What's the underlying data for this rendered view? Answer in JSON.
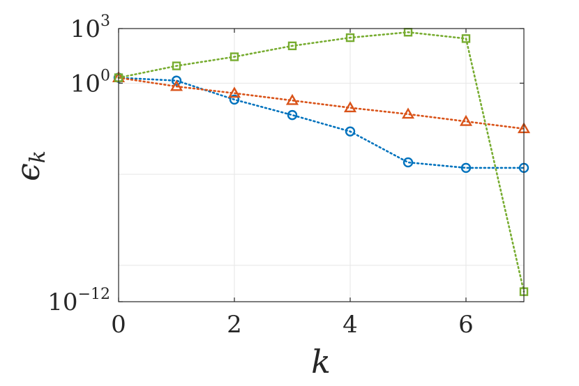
{
  "chart_data": {
    "type": "line",
    "title": "",
    "xlabel": "k",
    "ylabel": "ϵ",
    "ylabel_sub": "k",
    "y_scale": "log10",
    "xlim": [
      0,
      7
    ],
    "ylim_exp": [
      -12,
      3
    ],
    "grid": true,
    "x_ticks": [
      0,
      2,
      4,
      6
    ],
    "x_tick_labels": [
      "0",
      "2",
      "4",
      "6"
    ],
    "y_ticks_exp": [
      -12,
      0,
      3
    ],
    "y_tick_labels": [
      {
        "base": "10",
        "exp": "−12"
      },
      {
        "base": "10",
        "exp": "0"
      },
      {
        "base": "10",
        "exp": "3"
      }
    ],
    "y_gridlines_exp": [
      -10,
      -5,
      0,
      3
    ],
    "x": [
      0,
      1,
      2,
      3,
      4,
      5,
      6,
      7
    ],
    "series": [
      {
        "marker": "circle",
        "color": "#0072BD",
        "log10_values": [
          0.3,
          0.14,
          -0.9,
          -1.75,
          -2.65,
          -4.35,
          -4.65,
          -4.65
        ]
      },
      {
        "marker": "triangle",
        "color": "#D95319",
        "log10_values": [
          0.3,
          -0.18,
          -0.55,
          -0.95,
          -1.35,
          -1.7,
          -2.1,
          -2.5
        ]
      },
      {
        "marker": "square",
        "color": "#77AC30",
        "log10_values": [
          0.3,
          0.95,
          1.45,
          2.05,
          2.5,
          2.8,
          2.45,
          -11.45
        ]
      }
    ]
  }
}
